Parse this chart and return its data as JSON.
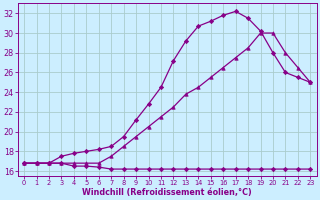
{
  "xlabel": "Windchill (Refroidissement éolien,°C)",
  "background_color": "#cceeff",
  "grid_color": "#aaddcc",
  "line_color": "#880088",
  "xlim_min": -0.5,
  "xlim_max": 23.5,
  "ylim_min": 15.5,
  "ylim_max": 33.0,
  "yticks": [
    16,
    18,
    20,
    22,
    24,
    26,
    28,
    30,
    32
  ],
  "xticks": [
    0,
    1,
    2,
    3,
    4,
    5,
    6,
    7,
    8,
    9,
    10,
    11,
    12,
    13,
    14,
    15,
    16,
    17,
    18,
    19,
    20,
    21,
    22,
    23
  ],
  "line_min_x": [
    0,
    1,
    2,
    3,
    4,
    5,
    6,
    7,
    8,
    9,
    10,
    11,
    12,
    13,
    14,
    15,
    16,
    17,
    18,
    19,
    20,
    21,
    22,
    23
  ],
  "line_min_y": [
    16.8,
    16.8,
    16.8,
    16.8,
    16.5,
    16.5,
    16.4,
    16.2,
    16.2,
    16.2,
    16.2,
    16.2,
    16.2,
    16.2,
    16.2,
    16.2,
    16.2,
    16.2,
    16.2,
    16.2,
    16.2,
    16.2,
    16.2,
    16.2
  ],
  "line_max_x": [
    0,
    1,
    2,
    3,
    4,
    5,
    6,
    7,
    8,
    9,
    10,
    11,
    12,
    13,
    14,
    15,
    16,
    17,
    18,
    19,
    20,
    21,
    22,
    23
  ],
  "line_max_y": [
    16.8,
    16.8,
    16.8,
    17.5,
    17.8,
    18.0,
    18.2,
    18.5,
    19.5,
    21.2,
    22.8,
    24.5,
    27.2,
    29.2,
    30.7,
    31.2,
    31.8,
    32.2,
    31.5,
    30.2,
    28.0,
    26.0,
    25.5,
    25.0
  ],
  "line_mid_x": [
    0,
    1,
    2,
    3,
    4,
    5,
    6,
    7,
    8,
    9,
    10,
    11,
    12,
    13,
    14,
    15,
    16,
    17,
    18,
    19,
    20,
    21,
    22,
    23
  ],
  "line_mid_y": [
    16.8,
    16.8,
    16.8,
    16.8,
    16.8,
    16.8,
    16.8,
    17.5,
    18.5,
    19.5,
    20.5,
    21.5,
    22.5,
    23.8,
    24.5,
    25.5,
    26.5,
    27.5,
    28.5,
    30.0,
    30.0,
    28.0,
    26.5,
    25.0
  ]
}
